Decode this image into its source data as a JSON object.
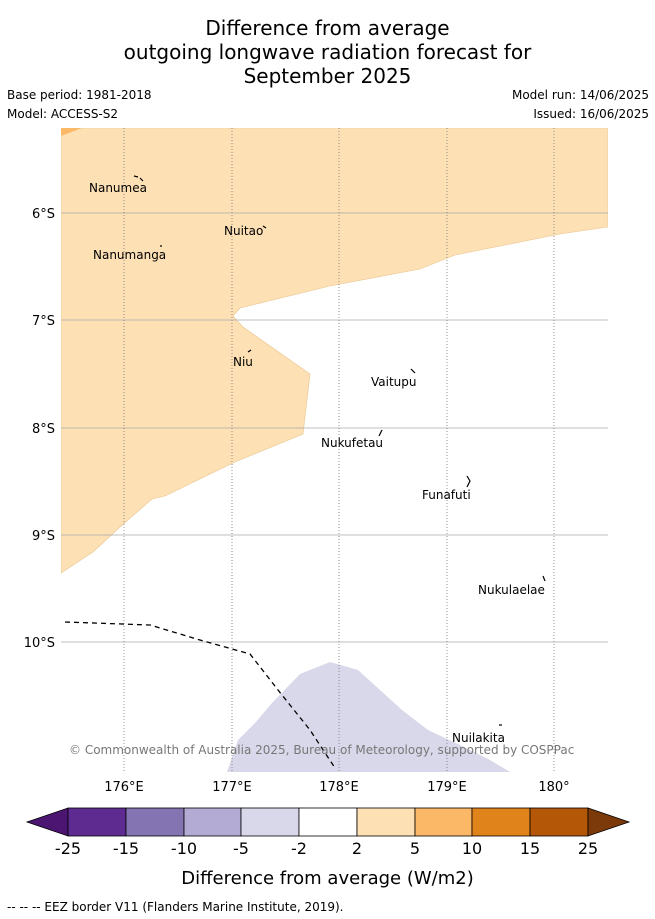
{
  "title": {
    "line1": "Difference from average",
    "line2": "outgoing longwave radiation forecast for",
    "line3": "September 2025"
  },
  "meta": {
    "base_period": "Base period: 1981-2018",
    "model": "Model: ACCESS-S2",
    "model_run": "Model run: 14/06/2025",
    "issued": "Issued: 16/06/2025"
  },
  "map": {
    "lat_labels": [
      "6°S",
      "7°S",
      "8°S",
      "9°S",
      "10°S"
    ],
    "lon_labels": [
      "176°E",
      "177°E",
      "178°E",
      "179°E",
      "180°"
    ],
    "islands": [
      {
        "name": "Nanumea"
      },
      {
        "name": "Nuitao"
      },
      {
        "name": "Nanumanga"
      },
      {
        "name": "Niu"
      },
      {
        "name": "Vaitupu"
      },
      {
        "name": "Nukufetau"
      },
      {
        "name": "Funafuti"
      },
      {
        "name": "Nukulaelae"
      },
      {
        "name": "Nuilakita"
      }
    ],
    "copyright": "© Commonwealth of Australia 2025, Bureau of Meteorology, supported by COSPPac",
    "fill_colors": {
      "positive_2_5": "#fde0b4",
      "positive_5_10": "#fbb867",
      "negative_5_2": "#d8d8ea",
      "neutral": "#ffffff",
      "eez_border": "#000000"
    }
  },
  "colorbar": {
    "ticks": [
      "-25",
      "-15",
      "-10",
      "-5",
      "-2",
      "2",
      "5",
      "10",
      "15",
      "25"
    ],
    "colors": [
      "#4b1571",
      "#5e2b91",
      "#8474b2",
      "#b3abd4",
      "#d8d8ea",
      "#ffffff",
      "#fde0b4",
      "#fbb867",
      "#e1831b",
      "#b45807",
      "#7c3a0b"
    ],
    "label": "Difference from average (W/m2)"
  },
  "footnote": "-- -- -- EEZ border V11 (Flanders Marine Institute, 2019)."
}
